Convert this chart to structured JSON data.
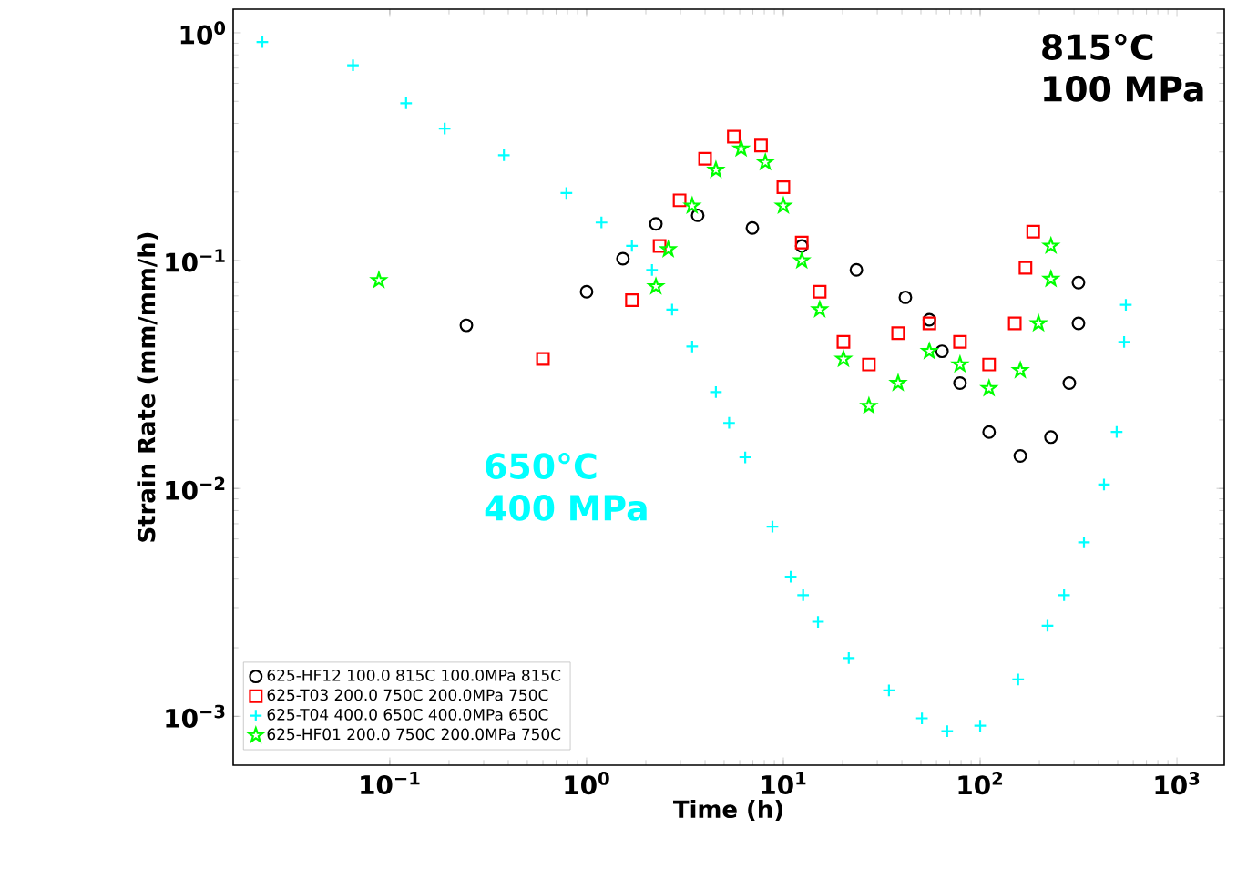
{
  "chart_data": {
    "type": "scatter",
    "xlabel": "Time (h)",
    "ylabel": "Strain Rate (mm/mm/h)",
    "log": "xy",
    "xlim": [
      0.016,
      1740
    ],
    "ylim": [
      0.00061,
      1.27
    ],
    "xticks": [
      {
        "value": 0.1,
        "label": "10$^{−1}$"
      },
      {
        "value": 1,
        "label": "10$^{0}$"
      },
      {
        "value": 10,
        "label": "10$^{1}$"
      },
      {
        "value": 100,
        "label": "10$^{2}$"
      },
      {
        "value": 1000,
        "label": "10$^{3}$"
      }
    ],
    "yticks": [
      {
        "value": 0.001,
        "label": "10$^{−3}$"
      },
      {
        "value": 0.01,
        "label": "10$^{−2}$"
      },
      {
        "value": 0.1,
        "label": "10$^{−1}$"
      },
      {
        "value": 1,
        "label": "10$^{0}$"
      }
    ],
    "legend": "bottom left",
    "annotations": [
      "815°C 100 MPa",
      "650°C 400 MPa"
    ],
    "series": [
      {
        "name": "625-HF12 100.0 815C 100.0MPa 815C",
        "color": "#000000",
        "marker": "circle",
        "x": [
          0.245,
          1.0,
          1.53,
          2.25,
          3.67,
          6.96,
          12.4,
          23.5,
          41.7,
          55.2,
          64,
          79,
          111,
          160,
          229,
          284,
          316,
          316
        ],
        "values": [
          0.052,
          0.073,
          0.102,
          0.145,
          0.158,
          0.139,
          0.116,
          0.091,
          0.069,
          0.055,
          0.04,
          0.029,
          0.0177,
          0.0139,
          0.0168,
          0.029,
          0.053,
          0.08
        ]
      },
      {
        "name": "625-T03 200.0 750C 200.0MPa 750C",
        "color": "#ff0000",
        "marker": "square",
        "x": [
          0.6,
          1.7,
          2.35,
          2.97,
          4.0,
          5.6,
          7.7,
          10,
          12.4,
          15.3,
          20.2,
          27.2,
          38.3,
          55.2,
          79,
          111,
          150,
          170,
          186
        ],
        "values": [
          0.037,
          0.067,
          0.116,
          0.184,
          0.28,
          0.35,
          0.32,
          0.21,
          0.12,
          0.073,
          0.044,
          0.035,
          0.048,
          0.053,
          0.044,
          0.035,
          0.053,
          0.093,
          0.134
        ]
      },
      {
        "name": "625-T04 400.0 650C 400.0MPa 650C",
        "color": "#00ffff",
        "marker": "cross",
        "x": [
          0.0225,
          0.065,
          0.121,
          0.19,
          0.38,
          0.79,
          1.19,
          1.7,
          2.15,
          2.72,
          3.44,
          4.54,
          5.3,
          6.4,
          8.8,
          10.9,
          12.6,
          15,
          21.5,
          34.4,
          50.6,
          68,
          100,
          156,
          220,
          267,
          337,
          426,
          494,
          539,
          550
        ],
        "values": [
          0.91,
          0.72,
          0.49,
          0.38,
          0.29,
          0.198,
          0.147,
          0.116,
          0.091,
          0.061,
          0.042,
          0.0265,
          0.0194,
          0.0137,
          0.0068,
          0.0041,
          0.0034,
          0.0026,
          0.0018,
          0.0013,
          0.00098,
          0.00086,
          0.00091,
          0.00145,
          0.0025,
          0.0034,
          0.0058,
          0.0104,
          0.0177,
          0.044,
          0.064
        ]
      },
      {
        "name": "625-HF01 200.0 750C 200.0MPa 750C",
        "color": "#00ff00",
        "marker": "star",
        "x": [
          0.088,
          2.25,
          2.6,
          3.44,
          4.54,
          6.1,
          8.1,
          10,
          12.4,
          15.3,
          20.2,
          27.2,
          38.3,
          55.2,
          79,
          111,
          160,
          198,
          229,
          229
        ],
        "values": [
          0.082,
          0.077,
          0.112,
          0.174,
          0.25,
          0.31,
          0.27,
          0.174,
          0.1,
          0.061,
          0.037,
          0.023,
          0.029,
          0.04,
          0.035,
          0.0275,
          0.033,
          0.053,
          0.083,
          0.116
        ]
      }
    ]
  }
}
